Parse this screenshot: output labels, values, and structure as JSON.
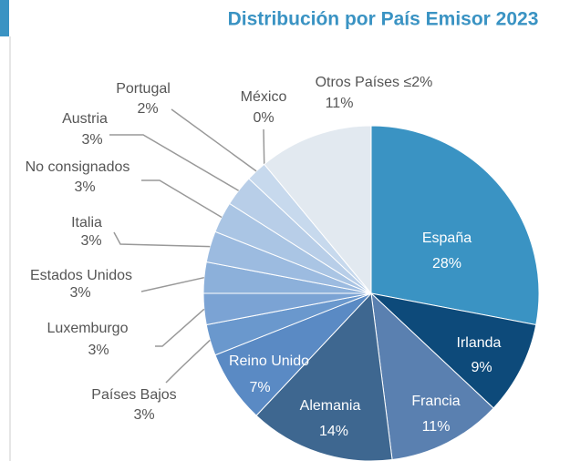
{
  "chart_data": {
    "type": "pie",
    "title": "Distribución por País Emisor 2023",
    "categories": [
      "España",
      "Irlanda",
      "Francia",
      "Alemania",
      "Reino Unido",
      "Países Bajos",
      "Luxemburgo",
      "Estados Unidos",
      "Italia",
      "No consignados",
      "Austria",
      "Portugal",
      "México",
      "Otros Países ≤2%"
    ],
    "values": [
      28,
      9,
      11,
      14,
      7,
      3,
      3,
      3,
      3,
      3,
      3,
      2,
      0,
      11
    ],
    "value_labels": [
      "28%",
      "9%",
      "11%",
      "14%",
      "7%",
      "3%",
      "3%",
      "3%",
      "3%",
      "3%",
      "3%",
      "2%",
      "0%",
      "11%"
    ],
    "colors": [
      "#3a93c3",
      "#0d4a7a",
      "#5a80b0",
      "#3e6790",
      "#5a8ac4",
      "#6a98cd",
      "#7ba3d4",
      "#8cb0da",
      "#9cbbe0",
      "#aac5e4",
      "#b8cee8",
      "#c7d9ed",
      "#d3e1f0",
      "#e2e9f0"
    ]
  }
}
